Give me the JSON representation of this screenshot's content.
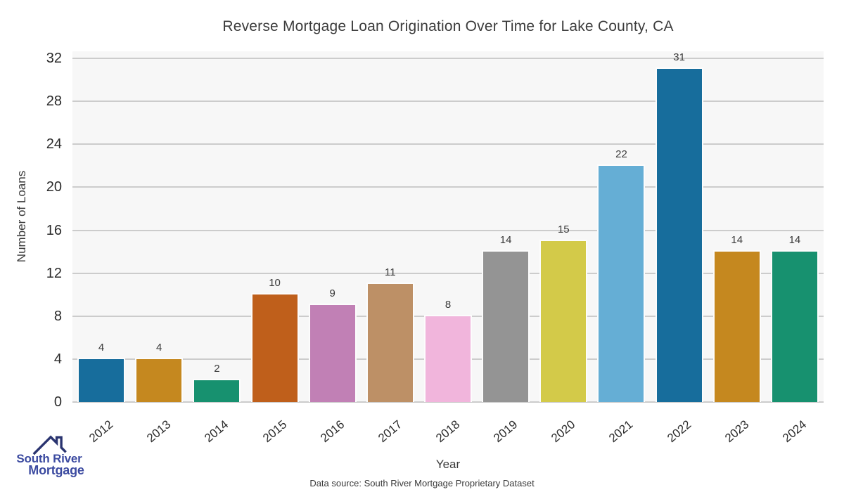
{
  "title": "Reverse Mortgage Loan Origination Over Time for Lake County, CA",
  "chart_data": {
    "type": "bar",
    "title": "Reverse Mortgage Loan Origination Over Time for Lake County, CA",
    "categories": [
      "2012",
      "2013",
      "2014",
      "2015",
      "2016",
      "2017",
      "2018",
      "2019",
      "2020",
      "2021",
      "2022",
      "2023",
      "2024"
    ],
    "values": [
      4,
      4,
      2,
      10,
      9,
      11,
      8,
      14,
      15,
      22,
      31,
      14,
      14
    ],
    "bar_colors": [
      "#176d9c",
      "#c5881f",
      "#17916f",
      "#bf5f1b",
      "#c180b5",
      "#bd9066",
      "#f1b5dc",
      "#949494",
      "#d3ca49",
      "#65aed5",
      "#176d9c",
      "#c5881f",
      "#17916f"
    ],
    "xlabel": "Year",
    "ylabel": "Number of Loans",
    "yticks": [
      0,
      4,
      8,
      12,
      16,
      20,
      24,
      28,
      32
    ],
    "ylim": [
      0,
      32.7
    ],
    "grid": "horizontal",
    "gridline_color": "#cccccc",
    "plot_background": "#f7f7f7",
    "value_labels_shown": true,
    "legend": "none"
  },
  "footer": {
    "data_source": "Data source: South River Mortgage Proprietary Dataset"
  },
  "logo": {
    "line1": "South River",
    "line2": "Mortgage",
    "text_color": "#3b4aa0",
    "roof_color": "#2a3470",
    "icon": "house-roof-with-chimney-icon"
  }
}
